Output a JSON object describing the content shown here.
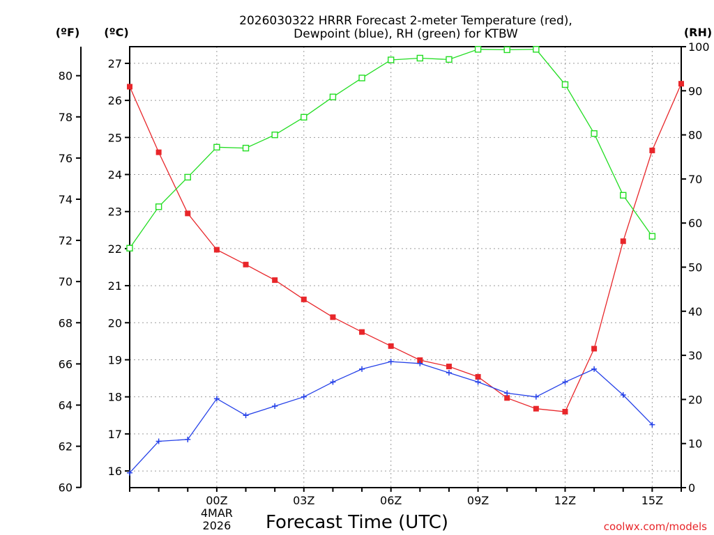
{
  "chart_data": {
    "type": "line",
    "title": [
      "2026030322 HRRR Forecast 2-meter Temperature (red),",
      "Dewpoint (blue), RH (green) for KTBW"
    ],
    "xlabel": "Forecast Time (UTC)",
    "credit": "coolwx.com/models",
    "units": {
      "fahrenheit": "(ºF)",
      "celsius": "(ºC)",
      "rh": "(RH)"
    },
    "x_hours": [
      -3,
      -2,
      -1,
      0,
      1,
      2,
      3,
      4,
      5,
      6,
      7,
      8,
      9,
      10,
      11,
      12,
      13,
      14,
      15,
      16
    ],
    "xlim": [
      -3,
      16
    ],
    "x_ticks": [
      {
        "hour": 0,
        "label": "00Z",
        "date": [
          "4MAR",
          "2026"
        ]
      },
      {
        "hour": 3,
        "label": "03Z"
      },
      {
        "hour": 6,
        "label": "06Z"
      },
      {
        "hour": 9,
        "label": "09Z"
      },
      {
        "hour": 12,
        "label": "12Z"
      },
      {
        "hour": 15,
        "label": "15Z"
      }
    ],
    "ylim_celsius": [
      15.55,
      27.45
    ],
    "ylim_rh": [
      0,
      100
    ],
    "yticks_celsius": [
      16,
      17,
      18,
      19,
      20,
      21,
      22,
      23,
      24,
      25,
      26,
      27
    ],
    "yticks_fahrenheit": [
      60,
      62,
      64,
      66,
      68,
      70,
      72,
      74,
      76,
      78,
      80
    ],
    "yticks_rh": [
      0,
      10,
      20,
      30,
      40,
      50,
      60,
      70,
      80,
      90,
      100
    ],
    "series": [
      {
        "name": "Temperature",
        "axis": "celsius",
        "color": "#e8262a",
        "marker": "filled-square",
        "values": [
          26.37,
          24.6,
          22.95,
          21.97,
          21.57,
          21.15,
          20.63,
          20.15,
          19.75,
          19.37,
          18.99,
          18.82,
          18.54,
          17.97,
          17.68,
          17.6,
          19.3,
          22.2,
          24.65,
          26.45
        ]
      },
      {
        "name": "Dewpoint",
        "axis": "celsius",
        "color": "#2440e8",
        "marker": "plus",
        "values": [
          15.95,
          16.8,
          16.85,
          17.95,
          17.5,
          17.75,
          18.0,
          18.4,
          18.75,
          18.95,
          18.9,
          18.65,
          18.4,
          18.1,
          18.0,
          18.4,
          18.75,
          18.05,
          17.25,
          null
        ]
      },
      {
        "name": "RH",
        "axis": "rh",
        "color": "#22dd22",
        "marker": "open-square",
        "values": [
          54.3,
          63.7,
          70.4,
          77.2,
          77.0,
          80.0,
          84.0,
          88.6,
          92.9,
          97.0,
          97.4,
          97.1,
          99.4,
          99.3,
          99.4,
          91.4,
          80.3,
          66.3,
          57.0,
          null
        ]
      }
    ],
    "grid": true
  }
}
